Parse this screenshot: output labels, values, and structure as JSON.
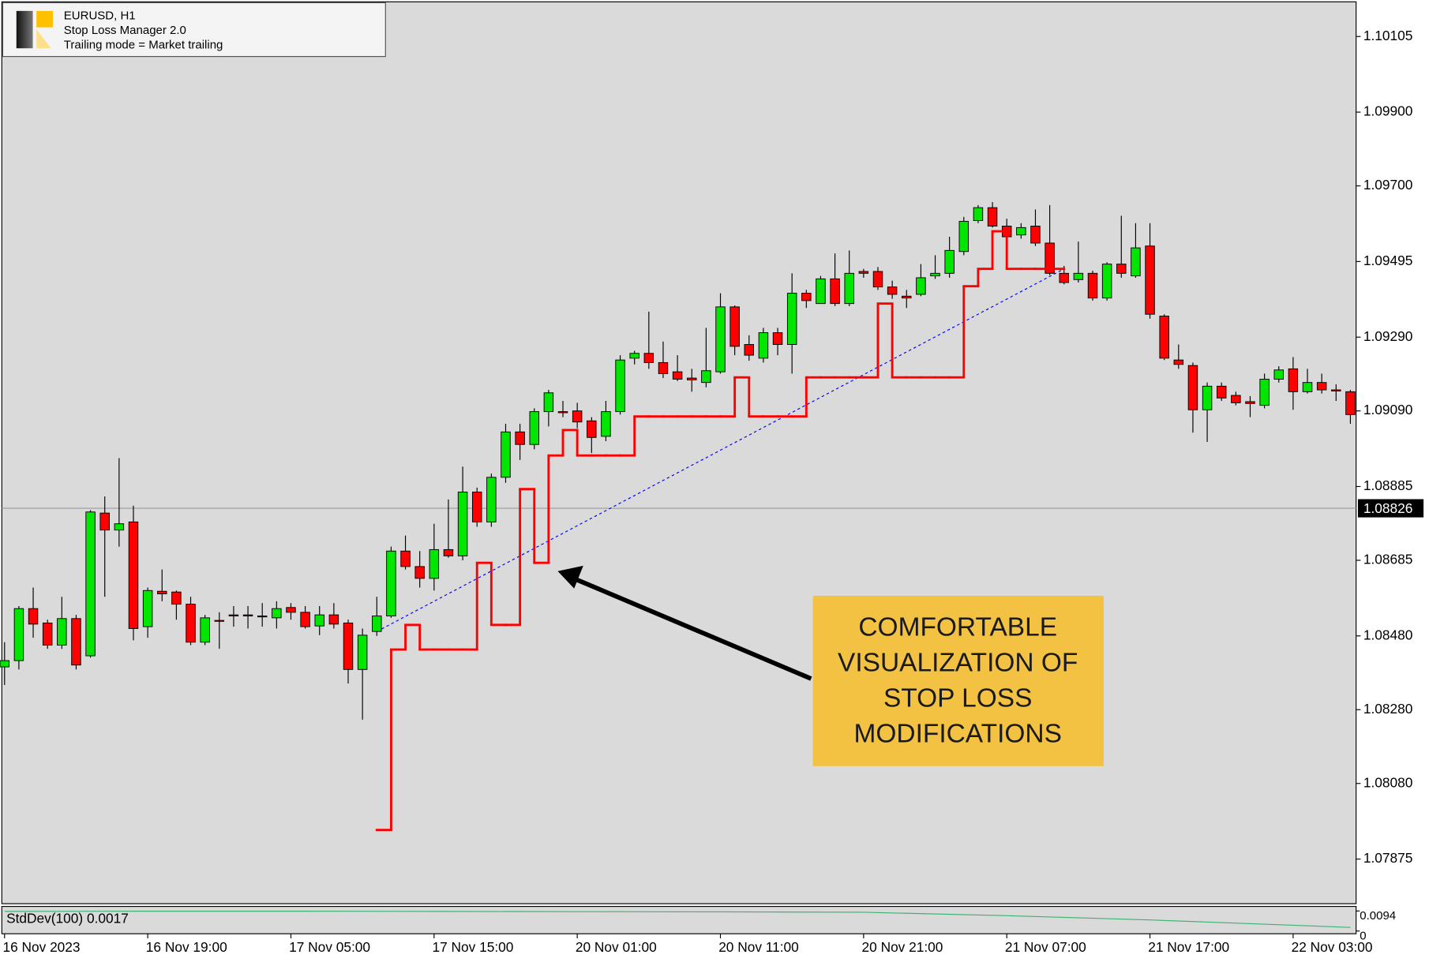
{
  "chart_data": {
    "type": "candlestick",
    "info_lines": [
      "EURUSD, H1",
      "Stop Loss Manager 2.0",
      "Trailing mode = Market trailing"
    ],
    "annotation": [
      "COMFORTABLE",
      "VISUALIZATION OF",
      "STOP LOSS",
      "MODIFICATIONS"
    ],
    "categories": [
      "16 Nov 2023",
      null,
      null,
      null,
      null,
      null,
      null,
      null,
      null,
      null,
      "16 Nov 19:00",
      null,
      null,
      null,
      null,
      null,
      null,
      null,
      null,
      null,
      "17 Nov 05:00",
      null,
      null,
      null,
      null,
      null,
      null,
      null,
      null,
      null,
      "17 Nov 15:00",
      null,
      null,
      null,
      null,
      null,
      null,
      null,
      null,
      null,
      "20 Nov 01:00",
      null,
      null,
      null,
      null,
      null,
      null,
      null,
      null,
      null,
      "20 Nov 11:00",
      null,
      null,
      null,
      null,
      null,
      null,
      null,
      null,
      null,
      "20 Nov 21:00",
      null,
      null,
      null,
      null,
      null,
      null,
      null,
      null,
      null,
      "21 Nov 07:00",
      null,
      null,
      null,
      null,
      null,
      null,
      null,
      null,
      null,
      "21 Nov 17:00",
      null,
      null,
      null,
      null,
      null,
      null,
      null,
      null,
      null,
      "22 Nov 03:00",
      null,
      null,
      null,
      null
    ],
    "open": [
      1.08396,
      1.08413,
      1.08554,
      1.08515,
      1.08455,
      1.08527,
      1.08426,
      1.08813,
      1.08767,
      1.08789,
      1.08505,
      1.08601,
      1.08599,
      1.08566,
      1.08463,
      1.08522,
      1.08537,
      1.08537,
      1.08534,
      1.08529,
      1.08557,
      1.08544,
      1.08507,
      1.08537,
      1.08515,
      1.08389,
      1.08492,
      1.08534,
      1.0871,
      1.08668,
      1.08636,
      1.08714,
      1.08697,
      1.0887,
      1.08789,
      1.0891,
      1.09033,
      1.08999,
      1.09088,
      1.09088,
      1.0909,
      1.09063,
      1.09021,
      1.09088,
      1.09233,
      1.09246,
      1.09221,
      1.09196,
      1.09179,
      1.09167,
      1.09196,
      1.09372,
      1.0927,
      1.09233,
      1.09302,
      1.0927,
      1.09409,
      1.09381,
      1.09448,
      1.09381,
      1.09468,
      1.09468,
      1.09426,
      1.09401,
      1.09406,
      1.09456,
      1.09463,
      1.09522,
      1.09606,
      1.09641,
      1.09591,
      1.09567,
      1.09591,
      1.09545,
      1.09463,
      1.09446,
      1.09463,
      1.09396,
      1.09488,
      1.09456,
      1.09537,
      1.09347,
      1.09228,
      1.09213,
      1.09093,
      1.09157,
      1.09132,
      1.09115,
      1.09105,
      1.09176,
      1.09204,
      1.09142,
      1.09167,
      1.09147,
      1.09142
    ],
    "high": [
      1.08463,
      1.08561,
      1.08611,
      1.08524,
      1.08586,
      1.08537,
      1.08821,
      1.08858,
      1.08962,
      1.08833,
      1.08611,
      1.0866,
      1.08603,
      1.08586,
      1.08537,
      1.08544,
      1.08561,
      1.08561,
      1.08569,
      1.08574,
      1.08569,
      1.08561,
      1.08561,
      1.08569,
      1.08524,
      1.085,
      1.08586,
      1.08722,
      1.08752,
      1.0871,
      1.08784,
      1.0885,
      1.08939,
      1.08882,
      1.0892,
      1.09055,
      1.09055,
      1.09097,
      1.09147,
      1.09117,
      1.09112,
      1.09073,
      1.09117,
      1.09241,
      1.09253,
      1.09359,
      1.09278,
      1.09241,
      1.09204,
      1.09315,
      1.09409,
      1.09376,
      1.09295,
      1.09315,
      1.09315,
      1.09463,
      1.09418,
      1.09456,
      1.09517,
      1.09525,
      1.09475,
      1.0948,
      1.09443,
      1.09418,
      1.09488,
      1.09512,
      1.09562,
      1.09616,
      1.09648,
      1.09656,
      1.09611,
      1.09599,
      1.09636,
      1.09648,
      1.09483,
      1.09549,
      1.0947,
      1.09493,
      1.09619,
      1.09599,
      1.09599,
      1.09352,
      1.0927,
      1.09221,
      1.09167,
      1.09167,
      1.09142,
      1.0913,
      1.09191,
      1.09211,
      1.09236,
      1.09204,
      1.09191,
      1.09162,
      1.09147
    ],
    "low": [
      1.08347,
      1.08389,
      1.08475,
      1.08445,
      1.08445,
      1.08389,
      1.08421,
      1.08586,
      1.08722,
      1.08468,
      1.08475,
      1.08574,
      1.08524,
      1.08455,
      1.08455,
      1.08445,
      1.08505,
      1.085,
      1.08505,
      1.085,
      1.08524,
      1.085,
      1.08482,
      1.085,
      1.08351,
      1.08253,
      1.0848,
      1.08529,
      1.0866,
      1.08611,
      1.08603,
      1.08692,
      1.08685,
      1.08776,
      1.08776,
      1.08895,
      1.08957,
      1.08986,
      1.09048,
      1.09073,
      1.09043,
      1.08976,
      1.09008,
      1.0908,
      1.09216,
      1.09204,
      1.09179,
      1.09171,
      1.09142,
      1.09154,
      1.09191,
      1.09241,
      1.09226,
      1.09221,
      1.09241,
      1.09191,
      1.09369,
      1.09381,
      1.09374,
      1.09374,
      1.09451,
      1.09418,
      1.09394,
      1.09369,
      1.09401,
      1.09448,
      1.09451,
      1.09512,
      1.09599,
      1.09587,
      1.09557,
      1.09557,
      1.09537,
      1.09458,
      1.09433,
      1.09438,
      1.09389,
      1.09389,
      1.09451,
      1.09451,
      1.0934,
      1.09228,
      1.09204,
      1.09031,
      1.09006,
      1.09117,
      1.09105,
      1.09073,
      1.09097,
      1.09167,
      1.09093,
      1.09137,
      1.09137,
      1.09117,
      1.09055
    ],
    "close": [
      1.08413,
      1.08554,
      1.08512,
      1.08455,
      1.08527,
      1.08401,
      1.08816,
      1.08767,
      1.08784,
      1.085,
      1.08603,
      1.08594,
      1.08566,
      1.08463,
      1.08529,
      1.0852,
      1.08534,
      1.08534,
      1.08532,
      1.08554,
      1.08544,
      1.08505,
      1.08537,
      1.08512,
      1.08389,
      1.08482,
      1.08534,
      1.0871,
      1.08668,
      1.08636,
      1.08714,
      1.08697,
      1.0887,
      1.08789,
      1.0891,
      1.09033,
      1.08999,
      1.09088,
      1.09139,
      1.09085,
      1.0906,
      1.09018,
      1.09088,
      1.09228,
      1.09246,
      1.09221,
      1.09191,
      1.09176,
      1.09174,
      1.09199,
      1.09372,
      1.09265,
      1.09241,
      1.09302,
      1.0927,
      1.09409,
      1.09389,
      1.09448,
      1.09381,
      1.09463,
      1.09463,
      1.09426,
      1.09406,
      1.09396,
      1.09451,
      1.09463,
      1.09525,
      1.09604,
      1.09641,
      1.09591,
      1.09562,
      1.09587,
      1.09545,
      1.09463,
      1.09438,
      1.09463,
      1.09396,
      1.09488,
      1.09463,
      1.09532,
      1.09352,
      1.09233,
      1.09216,
      1.09093,
      1.09157,
      1.09125,
      1.09112,
      1.0911,
      1.09176,
      1.09201,
      1.09142,
      1.09167,
      1.09147,
      1.09144,
      1.0908
    ],
    "up_color": "#00e600",
    "down_color": "#ff0000",
    "stop_loss": {
      "color": "#ff0000",
      "x": [
        26,
        27,
        28,
        29,
        30,
        31,
        32,
        33,
        34,
        35,
        36,
        37,
        38,
        39,
        40,
        41,
        42,
        43,
        44,
        45,
        46,
        47,
        48,
        49,
        50,
        51,
        52,
        53,
        54,
        55,
        56,
        57,
        58,
        59,
        60,
        61,
        62,
        63,
        64,
        65,
        66,
        67,
        68,
        69,
        70,
        71,
        72,
        73
      ],
      "values": [
        1.07954,
        1.08443,
        1.0851,
        1.08443,
        1.08443,
        1.08443,
        1.08443,
        1.08678,
        1.0851,
        1.0851,
        1.08878,
        1.08678,
        1.08969,
        1.09038,
        1.08969,
        1.08969,
        1.08969,
        1.08969,
        1.09075,
        1.09075,
        1.09075,
        1.09075,
        1.09075,
        1.09075,
        1.09075,
        1.09181,
        1.09075,
        1.09075,
        1.09075,
        1.09075,
        1.09181,
        1.09181,
        1.09181,
        1.09181,
        1.09181,
        1.09381,
        1.09181,
        1.09181,
        1.09181,
        1.09181,
        1.09181,
        1.09428,
        1.09475,
        1.09577,
        1.09475,
        1.09475,
        1.09475,
        1.09475
      ]
    },
    "trend_line": {
      "color": "#0000ff",
      "x": [
        26,
        74
      ],
      "values": [
        1.08492,
        1.09475
      ]
    },
    "current_price": 1.08826,
    "ylim": [
      1.07754,
      1.10199
    ],
    "yticks": [
      1.10105,
      {
        "value": 1.099,
        "label": "1.09900"
      },
      {
        "value": 1.097,
        "label": "1.09700"
      },
      1.09495,
      {
        "value": 1.0929,
        "label": "1.09290"
      },
      {
        "value": 1.0909,
        "label": "1.09090"
      },
      1.08885,
      1.08685,
      {
        "value": 1.0848,
        "label": "1.08480"
      },
      {
        "value": 1.0828,
        "label": "1.08280"
      },
      {
        "value": 1.0808,
        "label": "1.08080"
      },
      1.07875
    ],
    "indicator": {
      "label": "StdDev(100) 0.0017",
      "color": "#3cb371",
      "x": [
        0,
        10,
        20,
        30,
        40,
        50,
        60,
        70,
        80,
        90,
        94
      ],
      "values": [
        0.0092,
        0.0093,
        0.0093,
        0.0092,
        0.0091,
        0.009,
        0.0088,
        0.0072,
        0.0052,
        0.0027,
        0.0017
      ],
      "ylim": [
        0,
        0.0094
      ],
      "yticks": [
        0.0094,
        0
      ]
    }
  }
}
